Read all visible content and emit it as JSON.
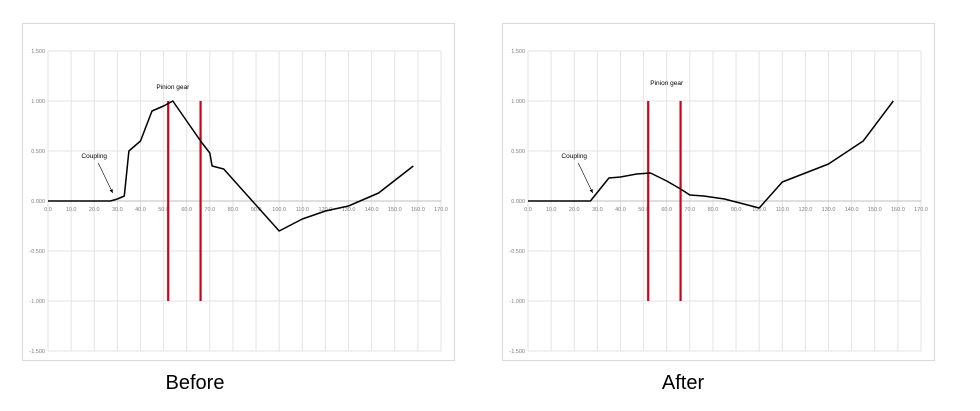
{
  "chart_data": [
    {
      "type": "line",
      "caption": "Before",
      "xlim": [
        0,
        170
      ],
      "ylim": [
        -1.5,
        1.5
      ],
      "x_ticks": [
        "0.0",
        "10.0",
        "20.0",
        "30.0",
        "40.0",
        "50.0",
        "60.0",
        "70.0",
        "80.0",
        "90.0",
        "100.0",
        "110.0",
        "120.0",
        "130.0",
        "140.0",
        "150.0",
        "160.0",
        "170.0"
      ],
      "y_ticks": [
        "1.500",
        "1.000",
        "0.500",
        "0.000",
        "-0.500",
        "-1.000",
        "-1.500"
      ],
      "grid": true,
      "series": [
        {
          "color": "#000000",
          "x": [
            0,
            27,
            30,
            33,
            35,
            40,
            45,
            50,
            54,
            60,
            66,
            70,
            71,
            76,
            100,
            110,
            115,
            120,
            130,
            143,
            158
          ],
          "y": [
            0,
            0,
            0.02,
            0.05,
            0.5,
            0.6,
            0.9,
            0.95,
            1.0,
            0.8,
            0.6,
            0.48,
            0.35,
            0.32,
            -0.3,
            -0.18,
            -0.14,
            -0.1,
            -0.05,
            0.08,
            0.35
          ]
        }
      ],
      "vlines": [
        {
          "x": 52,
          "y": [
            -1,
            1
          ],
          "color": "#d0021b"
        },
        {
          "x": 66,
          "y": [
            -1,
            1
          ],
          "color": "#d0021b"
        }
      ],
      "annotations": [
        {
          "text": "Pinion gear",
          "x": 54,
          "y": 1.12
        },
        {
          "text": "Coupling",
          "x": 20,
          "y": 0.43,
          "arrow_to": [
            28,
            0.08
          ]
        }
      ]
    },
    {
      "type": "line",
      "caption": "After",
      "xlim": [
        0,
        170
      ],
      "ylim": [
        -1.5,
        1.5
      ],
      "x_ticks": [
        "0.0",
        "10.0",
        "20.0",
        "30.0",
        "40.0",
        "50.0",
        "60.0",
        "70.0",
        "80.0",
        "90.0",
        "100.0",
        "110.0",
        "120.0",
        "130.0",
        "140.0",
        "150.0",
        "160.0",
        "170.0"
      ],
      "y_ticks": [
        "1.500",
        "1.000",
        "0.500",
        "0.000",
        "-0.500",
        "-1.000",
        "-1.500"
      ],
      "grid": true,
      "series": [
        {
          "color": "#000000",
          "x": [
            0,
            20,
            27,
            35,
            40,
            47,
            53,
            60,
            66,
            70,
            76,
            85,
            100,
            110,
            120,
            130,
            145,
            158
          ],
          "y": [
            0,
            0,
            0,
            0.23,
            0.24,
            0.27,
            0.28,
            0.2,
            0.12,
            0.06,
            0.05,
            0.02,
            -0.07,
            0.19,
            0.28,
            0.37,
            0.6,
            1.0
          ]
        }
      ],
      "vlines": [
        {
          "x": 52,
          "y": [
            -1,
            1
          ],
          "color": "#d0021b"
        },
        {
          "x": 66,
          "y": [
            -1,
            1
          ],
          "color": "#d0021b"
        }
      ],
      "annotations": [
        {
          "text": "Pinion gear",
          "x": 60,
          "y": 1.16
        },
        {
          "text": "Coupling",
          "x": 20,
          "y": 0.43,
          "arrow_to": [
            28,
            0.08
          ]
        }
      ]
    }
  ]
}
